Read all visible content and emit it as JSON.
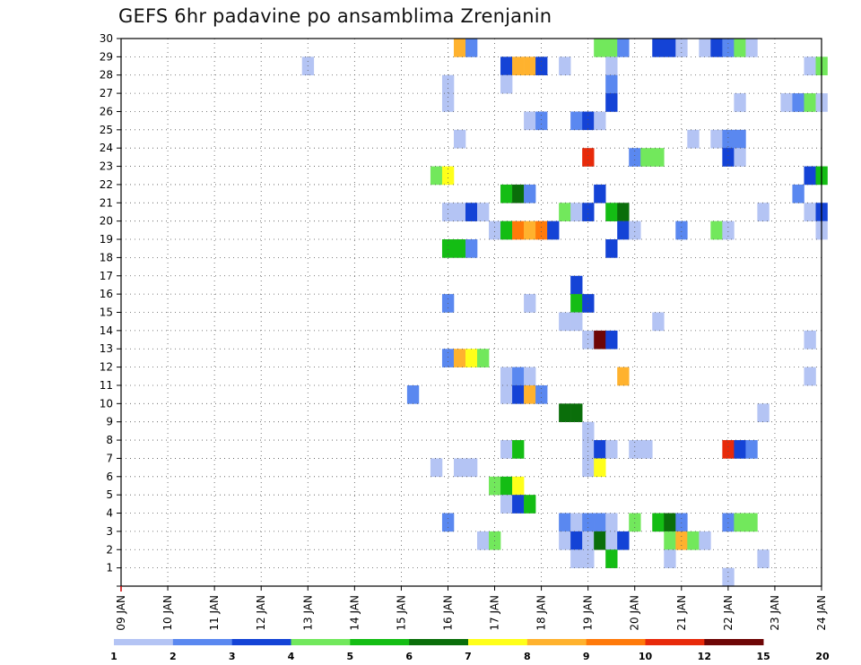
{
  "chart_data": {
    "type": "heatmap",
    "title": "GEFS 6hr padavine po ansamblima Zrenjanin",
    "y_ticks": [
      "1",
      "2",
      "3",
      "4",
      "5",
      "6",
      "7",
      "8",
      "9",
      "10",
      "11",
      "12",
      "13",
      "14",
      "15",
      "16",
      "17",
      "18",
      "19",
      "20",
      "21",
      "22",
      "23",
      "24",
      "25",
      "26",
      "27",
      "28",
      "29",
      "30"
    ],
    "x_ticks": [
      "09 JAN",
      "10 JAN",
      "11 JAN",
      "12 JAN",
      "13 JAN",
      "14 JAN",
      "15 JAN",
      "16 JAN",
      "17 JAN",
      "18 JAN",
      "19 JAN",
      "20 JAN",
      "21 JAN",
      "22 JAN",
      "23 JAN",
      "24 JAN"
    ],
    "x_range_days": [
      9,
      24
    ],
    "y_range": [
      0,
      30
    ],
    "grid": true,
    "colorbar": {
      "labels": [
        "1",
        "2",
        "3",
        "4",
        "5",
        "6",
        "7",
        "8",
        "9",
        "10",
        "12",
        "15",
        "20"
      ],
      "colors": [
        "#b4c4f4",
        "#5a88f0",
        "#1443d6",
        "#72e85c",
        "#14bd14",
        "#0a6e0a",
        "#ffff1a",
        "#ffb22e",
        "#ff7a0a",
        "#e82a0a",
        "#6e0606"
      ]
    },
    "cells": [
      [
        16.25,
        30,
        7
      ],
      [
        16.5,
        30,
        1
      ],
      [
        19.25,
        30,
        3
      ],
      [
        19.5,
        30,
        3
      ],
      [
        19.75,
        30,
        1
      ],
      [
        20.5,
        30,
        2
      ],
      [
        20.75,
        30,
        2
      ],
      [
        21.0,
        30,
        0
      ],
      [
        21.5,
        30,
        0
      ],
      [
        21.75,
        30,
        2
      ],
      [
        22.0,
        30,
        1
      ],
      [
        22.25,
        30,
        3
      ],
      [
        22.5,
        30,
        0
      ],
      [
        13.0,
        29,
        0
      ],
      [
        17.25,
        29,
        2
      ],
      [
        17.5,
        29,
        7
      ],
      [
        17.75,
        29,
        7
      ],
      [
        18.0,
        29,
        2
      ],
      [
        18.5,
        29,
        0
      ],
      [
        19.5,
        29,
        0
      ],
      [
        23.75,
        29,
        0
      ],
      [
        24.0,
        29,
        3
      ],
      [
        16.0,
        28,
        0
      ],
      [
        17.25,
        28,
        0
      ],
      [
        19.5,
        28,
        1
      ],
      [
        16.0,
        27,
        0
      ],
      [
        19.5,
        27,
        2
      ],
      [
        22.25,
        27,
        0
      ],
      [
        23.25,
        27,
        0
      ],
      [
        23.5,
        27,
        1
      ],
      [
        23.75,
        27,
        3
      ],
      [
        24.0,
        27,
        0
      ],
      [
        17.75,
        26,
        0
      ],
      [
        18.0,
        26,
        1
      ],
      [
        18.75,
        26,
        1
      ],
      [
        19.0,
        26,
        2
      ],
      [
        19.25,
        26,
        0
      ],
      [
        16.25,
        25,
        0
      ],
      [
        21.25,
        25,
        0
      ],
      [
        21.75,
        25,
        0
      ],
      [
        22.0,
        25,
        1
      ],
      [
        22.25,
        25,
        1
      ],
      [
        19.0,
        24,
        9
      ],
      [
        20.0,
        24,
        1
      ],
      [
        20.25,
        24,
        3
      ],
      [
        20.5,
        24,
        3
      ],
      [
        22.0,
        24,
        2
      ],
      [
        22.25,
        24,
        0
      ],
      [
        15.75,
        23,
        3
      ],
      [
        16.0,
        23,
        6
      ],
      [
        23.75,
        23,
        2
      ],
      [
        24.0,
        23,
        4
      ],
      [
        17.25,
        22,
        4
      ],
      [
        17.5,
        22,
        5
      ],
      [
        17.75,
        22,
        1
      ],
      [
        19.25,
        22,
        2
      ],
      [
        23.5,
        22,
        1
      ],
      [
        16.0,
        21,
        0
      ],
      [
        16.25,
        21,
        0
      ],
      [
        16.5,
        21,
        2
      ],
      [
        16.75,
        21,
        0
      ],
      [
        18.5,
        21,
        3
      ],
      [
        18.75,
        21,
        0
      ],
      [
        19.0,
        21,
        2
      ],
      [
        19.5,
        21,
        4
      ],
      [
        19.75,
        21,
        5
      ],
      [
        22.75,
        21,
        0
      ],
      [
        23.75,
        21,
        0
      ],
      [
        24.0,
        21,
        2
      ],
      [
        17.0,
        20,
        0
      ],
      [
        17.25,
        20,
        4
      ],
      [
        17.5,
        20,
        8
      ],
      [
        17.75,
        20,
        7
      ],
      [
        18.0,
        20,
        8
      ],
      [
        18.25,
        20,
        2
      ],
      [
        19.75,
        20,
        2
      ],
      [
        20.0,
        20,
        0
      ],
      [
        21.0,
        20,
        1
      ],
      [
        21.75,
        20,
        3
      ],
      [
        22.0,
        20,
        0
      ],
      [
        24.0,
        20,
        0
      ],
      [
        16.0,
        19,
        4
      ],
      [
        16.25,
        19,
        4
      ],
      [
        16.5,
        19,
        1
      ],
      [
        19.5,
        19,
        2
      ],
      [
        18.75,
        17,
        2
      ],
      [
        16.0,
        16,
        1
      ],
      [
        17.75,
        16,
        0
      ],
      [
        18.75,
        16,
        4
      ],
      [
        19.0,
        16,
        2
      ],
      [
        18.5,
        15,
        0
      ],
      [
        18.75,
        15,
        0
      ],
      [
        20.5,
        15,
        0
      ],
      [
        19.0,
        14,
        0
      ],
      [
        19.25,
        14,
        10
      ],
      [
        19.5,
        14,
        2
      ],
      [
        23.75,
        14,
        0
      ],
      [
        16.0,
        13,
        1
      ],
      [
        16.25,
        13,
        7
      ],
      [
        16.5,
        13,
        6
      ],
      [
        16.75,
        13,
        3
      ],
      [
        17.25,
        12,
        0
      ],
      [
        17.5,
        12,
        1
      ],
      [
        17.75,
        12,
        0
      ],
      [
        19.75,
        12,
        7
      ],
      [
        23.75,
        12,
        0
      ],
      [
        15.25,
        11,
        1
      ],
      [
        17.25,
        11,
        0
      ],
      [
        17.5,
        11,
        2
      ],
      [
        17.75,
        11,
        7
      ],
      [
        18.0,
        11,
        1
      ],
      [
        18.5,
        10,
        5
      ],
      [
        18.75,
        10,
        5
      ],
      [
        22.75,
        10,
        0
      ],
      [
        19.0,
        9,
        0
      ],
      [
        17.25,
        8,
        0
      ],
      [
        17.5,
        8,
        4
      ],
      [
        19.0,
        8,
        0
      ],
      [
        19.25,
        8,
        2
      ],
      [
        19.5,
        8,
        0
      ],
      [
        20.0,
        8,
        0
      ],
      [
        20.25,
        8,
        0
      ],
      [
        22.0,
        8,
        9
      ],
      [
        22.25,
        8,
        2
      ],
      [
        22.5,
        8,
        1
      ],
      [
        15.75,
        7,
        0
      ],
      [
        16.25,
        7,
        0
      ],
      [
        16.5,
        7,
        0
      ],
      [
        19.0,
        7,
        0
      ],
      [
        19.25,
        7,
        6
      ],
      [
        17.0,
        6,
        3
      ],
      [
        17.25,
        6,
        4
      ],
      [
        17.5,
        6,
        6
      ],
      [
        17.25,
        5,
        0
      ],
      [
        17.5,
        5,
        2
      ],
      [
        17.75,
        5,
        4
      ],
      [
        16.0,
        4,
        1
      ],
      [
        18.5,
        4,
        1
      ],
      [
        18.75,
        4,
        0
      ],
      [
        19.0,
        4,
        1
      ],
      [
        19.25,
        4,
        1
      ],
      [
        19.5,
        4,
        0
      ],
      [
        20.0,
        4,
        3
      ],
      [
        20.5,
        4,
        4
      ],
      [
        20.75,
        4,
        5
      ],
      [
        21.0,
        4,
        1
      ],
      [
        22.0,
        4,
        1
      ],
      [
        22.25,
        4,
        3
      ],
      [
        22.5,
        4,
        3
      ],
      [
        16.75,
        3,
        0
      ],
      [
        17.0,
        3,
        3
      ],
      [
        18.5,
        3,
        0
      ],
      [
        18.75,
        3,
        2
      ],
      [
        19.0,
        3,
        0
      ],
      [
        19.25,
        3,
        5
      ],
      [
        19.5,
        3,
        0
      ],
      [
        19.75,
        3,
        2
      ],
      [
        20.75,
        3,
        3
      ],
      [
        21.0,
        3,
        7
      ],
      [
        21.25,
        3,
        3
      ],
      [
        21.5,
        3,
        0
      ],
      [
        18.75,
        2,
        0
      ],
      [
        19.0,
        2,
        0
      ],
      [
        19.5,
        2,
        4
      ],
      [
        20.75,
        2,
        0
      ],
      [
        22.75,
        2,
        0
      ],
      [
        22.0,
        1,
        0
      ]
    ]
  }
}
